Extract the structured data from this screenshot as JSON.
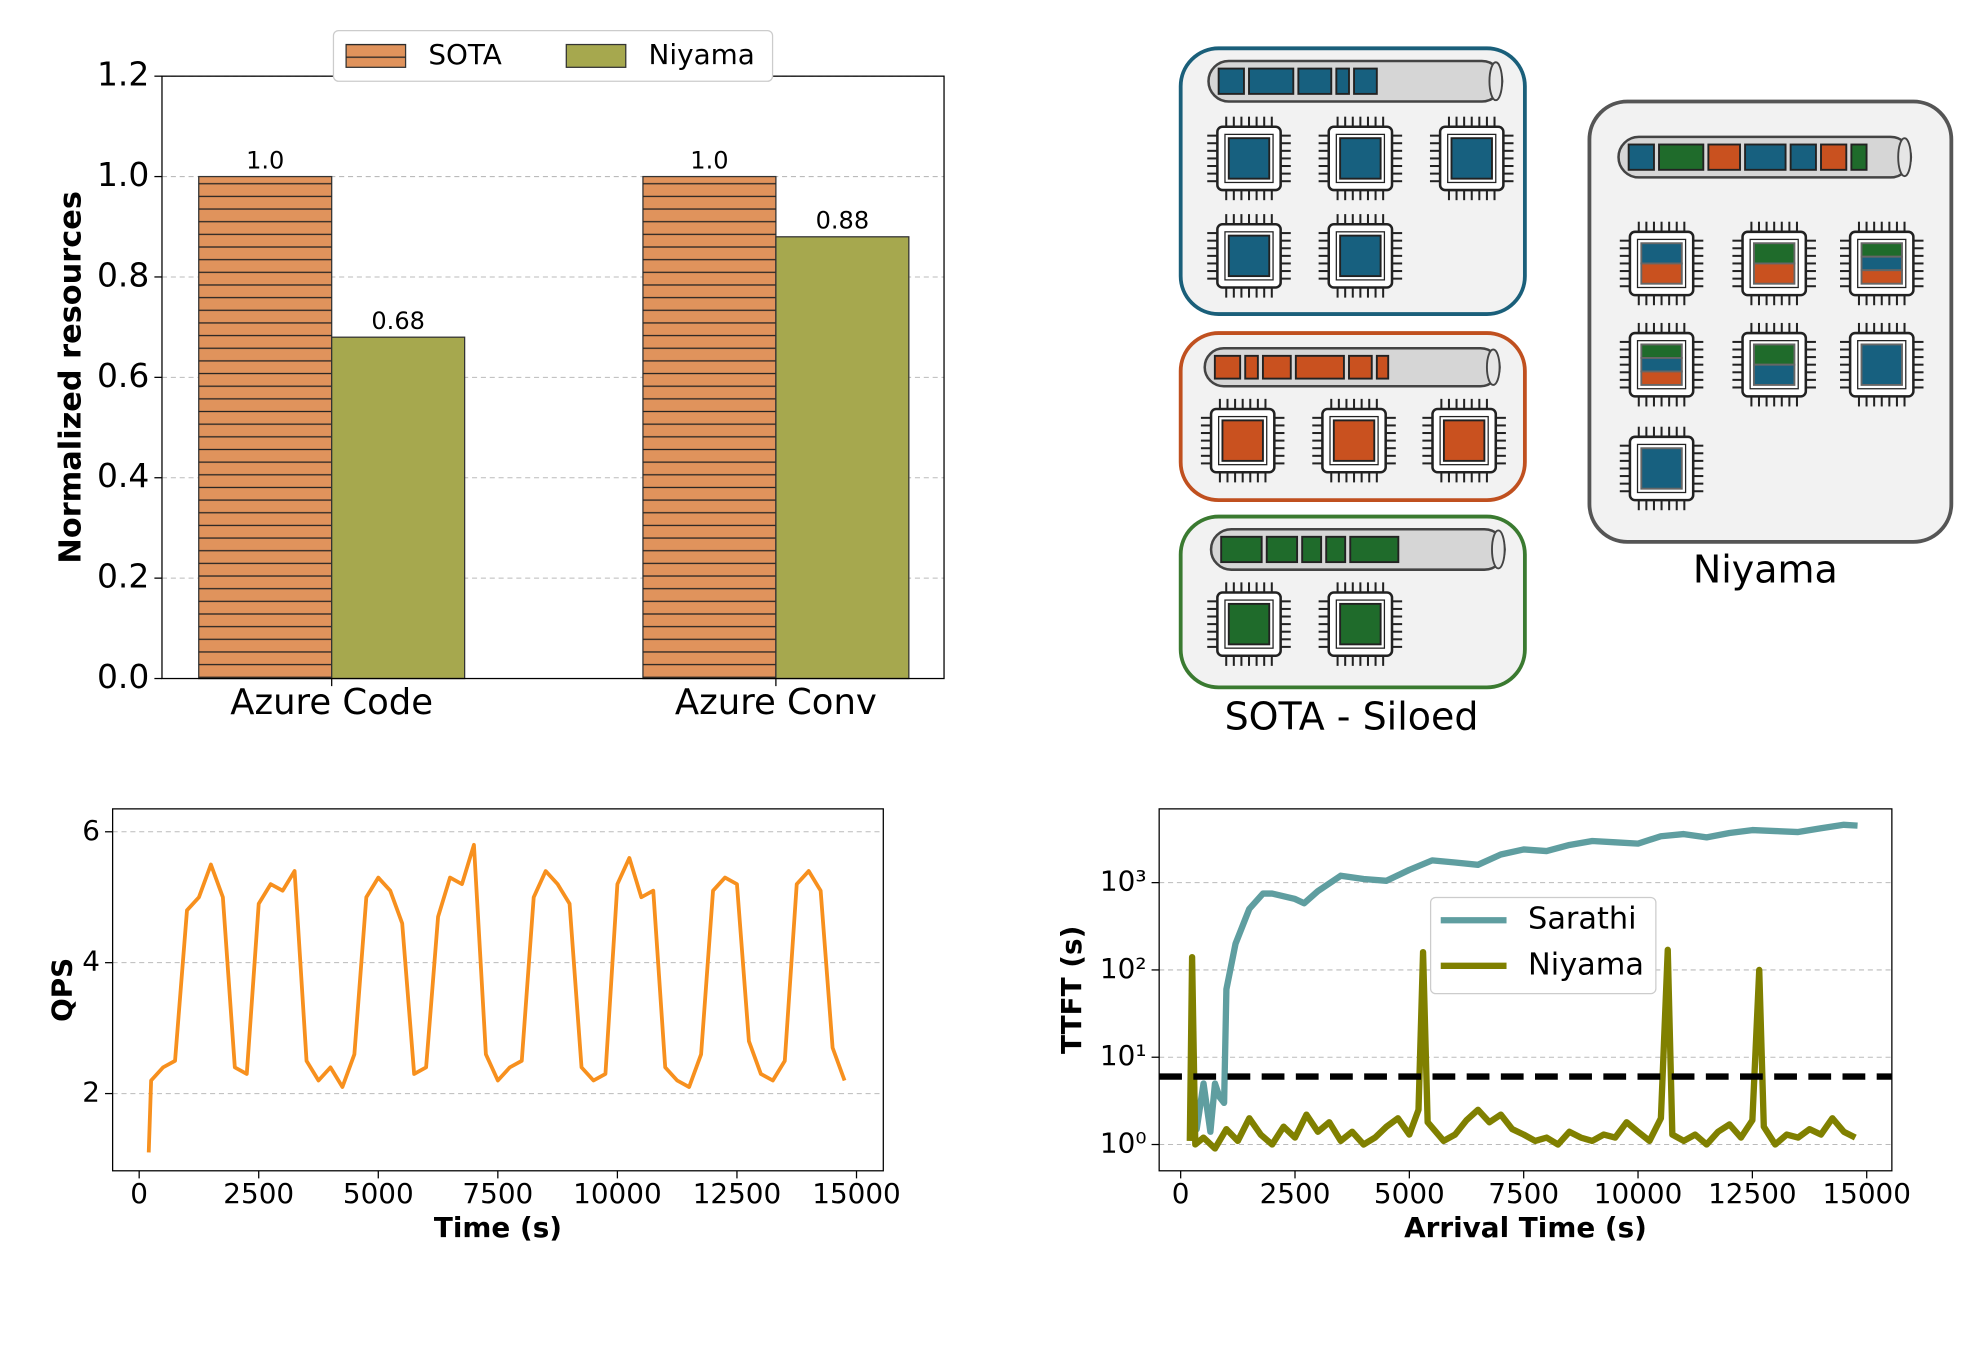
{
  "chart_data": [
    {
      "type": "bar",
      "ylabel": "Normalized resources",
      "categories": [
        "Azure Code",
        "Azure Conv"
      ],
      "series": [
        {
          "name": "SOTA",
          "color": "#e0935c",
          "hatch": "horizontal",
          "values": [
            1.0,
            1.0
          ],
          "value_labels": [
            "1.0",
            "1.0"
          ]
        },
        {
          "name": "Niyama",
          "color": "#a6a84e",
          "values": [
            0.68,
            0.88
          ]
        }
      ],
      "ylim": [
        0,
        1.2
      ],
      "yticks": [
        {
          "value": 0,
          "label": "0.0"
        },
        {
          "value": 0.2,
          "label": "0.2"
        },
        {
          "value": 0.4,
          "label": "0.4"
        },
        {
          "value": 0.6,
          "label": "0.6"
        },
        {
          "value": 0.8,
          "label": "0.8"
        },
        {
          "value": 1.0,
          "label": "1.0"
        },
        {
          "value": 1.2,
          "label": "1.2"
        }
      ],
      "grid": true,
      "legend": "upper center"
    },
    {
      "type": "line",
      "xlabel": "Time (s)",
      "ylabel": "QPS",
      "color": "#f7901e",
      "x": [
        200,
        250,
        500,
        750,
        1000,
        1250,
        1500,
        1750,
        2000,
        2250,
        2500,
        2750,
        3000,
        3250,
        3500,
        3750,
        4000,
        4250,
        4500,
        4750,
        5000,
        5250,
        5500,
        5750,
        6000,
        6250,
        6500,
        6750,
        7000,
        7250,
        7500,
        7750,
        8000,
        8250,
        8500,
        8750,
        9000,
        9250,
        9500,
        9750,
        10000,
        10250,
        10500,
        10750,
        11000,
        11250,
        11500,
        11750,
        12000,
        12250,
        12500,
        12750,
        13000,
        13250,
        13500,
        13750,
        14000,
        14250,
        14500,
        14750
      ],
      "values": [
        1.1,
        2.2,
        2.4,
        2.5,
        4.8,
        5.0,
        5.5,
        5.0,
        2.4,
        2.3,
        4.9,
        5.2,
        5.1,
        5.4,
        2.5,
        2.2,
        2.4,
        2.1,
        2.6,
        5.0,
        5.3,
        5.1,
        4.6,
        2.3,
        2.4,
        4.7,
        5.3,
        5.2,
        5.8,
        2.6,
        2.2,
        2.4,
        2.5,
        5.0,
        5.4,
        5.2,
        4.9,
        2.4,
        2.2,
        2.3,
        5.2,
        5.6,
        5.0,
        5.1,
        2.4,
        2.2,
        2.1,
        2.6,
        5.1,
        5.3,
        5.2,
        2.8,
        2.3,
        2.2,
        2.5,
        5.2,
        5.4,
        5.1,
        2.7,
        2.2
      ],
      "xlim": [
        -555,
        15560
      ],
      "xticks": [
        0,
        2500,
        5000,
        7500,
        10000,
        12500,
        15000
      ],
      "ylim": [
        0.82,
        6.35
      ],
      "yticks": [
        2,
        4,
        6
      ],
      "grid": true
    },
    {
      "type": "line",
      "xlabel": "Arrival Time (s)",
      "ylabel": "TTFT (s)",
      "log_y": true,
      "series": [
        {
          "name": "Sarathi",
          "color": "#5f9ea0",
          "x": [
            280,
            350,
            500,
            650,
            750,
            850,
            950,
            1000,
            1200,
            1500,
            1800,
            2000,
            2500,
            2700,
            3000,
            3500,
            4000,
            4500,
            5000,
            5500,
            6000,
            6500,
            7000,
            7500,
            8000,
            8500,
            9000,
            9500,
            10000,
            10500,
            11000,
            11500,
            12000,
            12500,
            13000,
            13500,
            14000,
            14500,
            14800
          ],
          "values": [
            5,
            1.5,
            5,
            1.4,
            5,
            3.5,
            3,
            60,
            200,
            500,
            750,
            750,
            650,
            580,
            800,
            1200,
            1100,
            1050,
            1400,
            1800,
            1700,
            1600,
            2100,
            2400,
            2300,
            2700,
            3000,
            2900,
            2800,
            3400,
            3600,
            3300,
            3700,
            4000,
            3900,
            3800,
            4200,
            4600,
            4500
          ]
        },
        {
          "name": "Niyama",
          "color": "#808000",
          "x": [
            200,
            250,
            320,
            500,
            750,
            1000,
            1250,
            1500,
            1750,
            2000,
            2250,
            2500,
            2750,
            3000,
            3250,
            3500,
            3750,
            4000,
            4250,
            4500,
            4750,
            5000,
            5200,
            5300,
            5400,
            5750,
            6000,
            6250,
            6500,
            6750,
            7000,
            7250,
            7500,
            7750,
            8000,
            8250,
            8500,
            8750,
            9000,
            9250,
            9500,
            9750,
            10000,
            10250,
            10500,
            10650,
            10750,
            11000,
            11250,
            11500,
            11750,
            12000,
            12250,
            12500,
            12650,
            12750,
            13000,
            13250,
            13500,
            13750,
            14000,
            14250,
            14500,
            14750
          ],
          "values": [
            1.1,
            140,
            1.0,
            1.2,
            0.9,
            1.5,
            1.1,
            2.0,
            1.3,
            1.0,
            1.6,
            1.2,
            2.2,
            1.4,
            1.8,
            1.1,
            1.4,
            1.0,
            1.2,
            1.6,
            2.0,
            1.3,
            2.5,
            160,
            1.8,
            1.1,
            1.3,
            1.9,
            2.5,
            1.8,
            2.2,
            1.5,
            1.3,
            1.1,
            1.2,
            1.0,
            1.4,
            1.2,
            1.1,
            1.3,
            1.2,
            1.8,
            1.4,
            1.1,
            2.0,
            170,
            1.3,
            1.1,
            1.3,
            1.0,
            1.4,
            1.7,
            1.2,
            1.9,
            100,
            1.6,
            1.0,
            1.3,
            1.2,
            1.5,
            1.3,
            2.0,
            1.4,
            1.2
          ]
        }
      ],
      "reference_line": 6,
      "xlim": [
        -470,
        15550
      ],
      "xticks": [
        0,
        2500,
        5000,
        7500,
        10000,
        12500,
        15000
      ],
      "ylim": [
        0.5,
        7000
      ],
      "yticks": [
        {
          "value": 1,
          "label": "10⁰"
        },
        {
          "value": 10,
          "label": "10¹"
        },
        {
          "value": 100,
          "label": "10²"
        },
        {
          "value": 1000,
          "label": "10³"
        }
      ],
      "grid": true,
      "legend": "center"
    }
  ],
  "diagram": {
    "siloed_label": "SOTA - Siloed",
    "niyama_label": "Niyama"
  }
}
